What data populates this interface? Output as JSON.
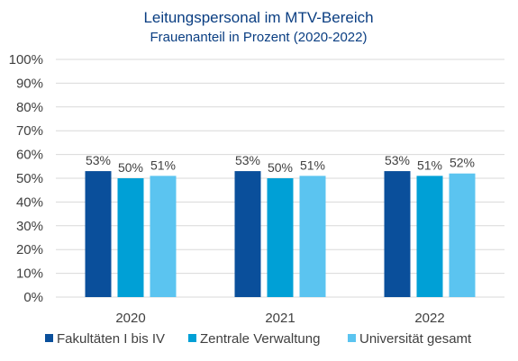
{
  "chart_data": {
    "type": "bar",
    "title": "Leitungspersonal im MTV-Bereich",
    "subtitle": "Frauenanteil in Prozent (2020-2022)",
    "categories": [
      "2020",
      "2021",
      "2022"
    ],
    "series": [
      {
        "name": "Fakultäten I bis IV",
        "values": [
          53,
          53,
          53
        ],
        "color": "#0a4f9b"
      },
      {
        "name": "Zentrale Verwaltung",
        "values": [
          50,
          50,
          51
        ],
        "color": "#00a0d6"
      },
      {
        "name": "Universität gesamt",
        "values": [
          51,
          51,
          52
        ],
        "color": "#5bc4f0"
      }
    ],
    "data_labels": [
      [
        "53%",
        "53%",
        "53%"
      ],
      [
        "50%",
        "50%",
        "51%"
      ],
      [
        "51%",
        "51%",
        "52%"
      ]
    ],
    "ylim": [
      0,
      100
    ],
    "y_ticks": [
      "0%",
      "10%",
      "20%",
      "30%",
      "40%",
      "50%",
      "60%",
      "70%",
      "80%",
      "90%",
      "100%"
    ],
    "grid": true,
    "legend_position": "bottom"
  }
}
